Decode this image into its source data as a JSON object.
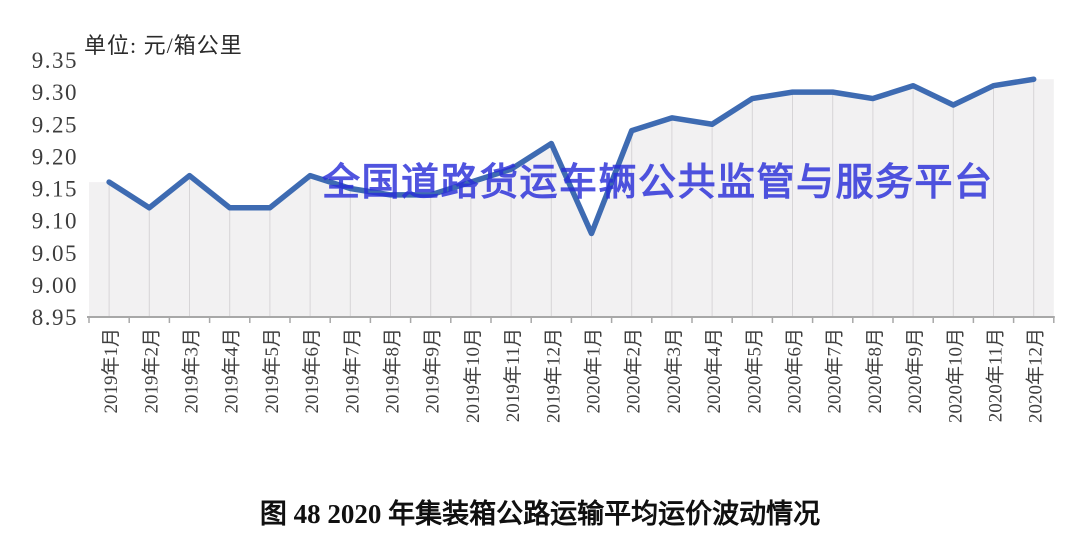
{
  "unit_label": "单位: 元/箱公里",
  "watermark": "全国道路货运车辆公共监管与服务平台",
  "caption": "图 48 2020 年集装箱公路运输平均运价波动情况",
  "chart_data": {
    "type": "line",
    "title": "图 48 2020 年集装箱公路运输平均运价波动情况",
    "unit": "元/箱公里",
    "xlabel": "",
    "ylabel": "元/箱公里",
    "categories": [
      "2019年1月",
      "2019年2月",
      "2019年3月",
      "2019年4月",
      "2019年5月",
      "2019年6月",
      "2019年7月",
      "2019年8月",
      "2019年9月",
      "2019年10月",
      "2019年11月",
      "2019年12月",
      "2020年1月",
      "2020年2月",
      "2020年3月",
      "2020年4月",
      "2020年5月",
      "2020年6月",
      "2020年7月",
      "2020年8月",
      "2020年9月",
      "2020年10月",
      "2020年11月",
      "2020年12月"
    ],
    "values": [
      9.16,
      9.12,
      9.17,
      9.12,
      9.12,
      9.17,
      9.15,
      9.14,
      9.14,
      9.16,
      9.18,
      9.22,
      9.08,
      9.24,
      9.26,
      9.25,
      9.29,
      9.3,
      9.3,
      9.29,
      9.31,
      9.28,
      9.31,
      9.32
    ],
    "ylim": [
      8.95,
      9.35
    ],
    "ytick_step": 0.05,
    "grid": "vertical droplines at each month",
    "legend_position": "none",
    "colors": {
      "line": "#3e6bb2",
      "area_fill": "#f2f1f2",
      "dropline": "#d7d5d7",
      "axis": "#a8a8a8",
      "tick_text": "#3c3c3c",
      "watermark": "#2a2fd9"
    }
  }
}
